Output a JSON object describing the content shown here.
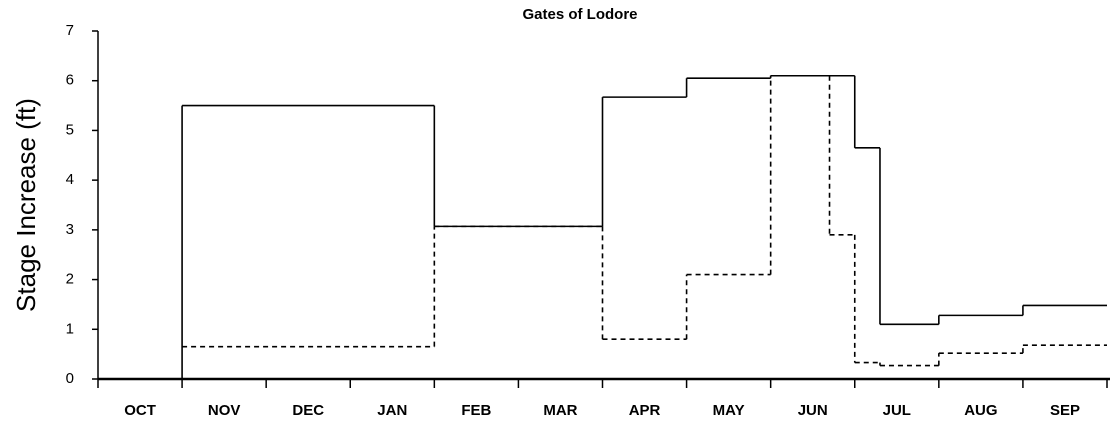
{
  "chart_data": {
    "type": "line",
    "step": "post",
    "title": "Gates of Lodore",
    "y_label": "Stage Increase (ft)",
    "categories": [
      "OCT",
      "NOV",
      "DEC",
      "JAN",
      "FEB",
      "MAR",
      "APR",
      "MAY",
      "JUN",
      "JUL",
      "AUG",
      "SEP"
    ],
    "xlim": [
      0,
      12
    ],
    "xticks": [
      0,
      1,
      2,
      3,
      4,
      5,
      6,
      7,
      8,
      9,
      10,
      11,
      12
    ],
    "ylim": [
      0,
      7
    ],
    "yticks": [
      0,
      1,
      2,
      3,
      4,
      5,
      6,
      7
    ],
    "series": [
      {
        "color": "#000000",
        "dash": "solid",
        "x": [
          0,
          1,
          4,
          6,
          7,
          8,
          9,
          9.3,
          10,
          11
        ],
        "values": [
          0,
          5.5,
          3.07,
          5.67,
          6.05,
          6.1,
          4.65,
          1.1,
          1.28,
          1.48
        ]
      },
      {
        "color": "#000000",
        "dash": "dashed",
        "x": [
          1,
          4,
          6,
          7,
          8,
          8.7,
          9,
          9.3,
          10,
          11
        ],
        "values": [
          0.65,
          3.07,
          0.8,
          2.1,
          6.1,
          2.9,
          0.33,
          0.27,
          0.52,
          0.68
        ]
      }
    ]
  }
}
